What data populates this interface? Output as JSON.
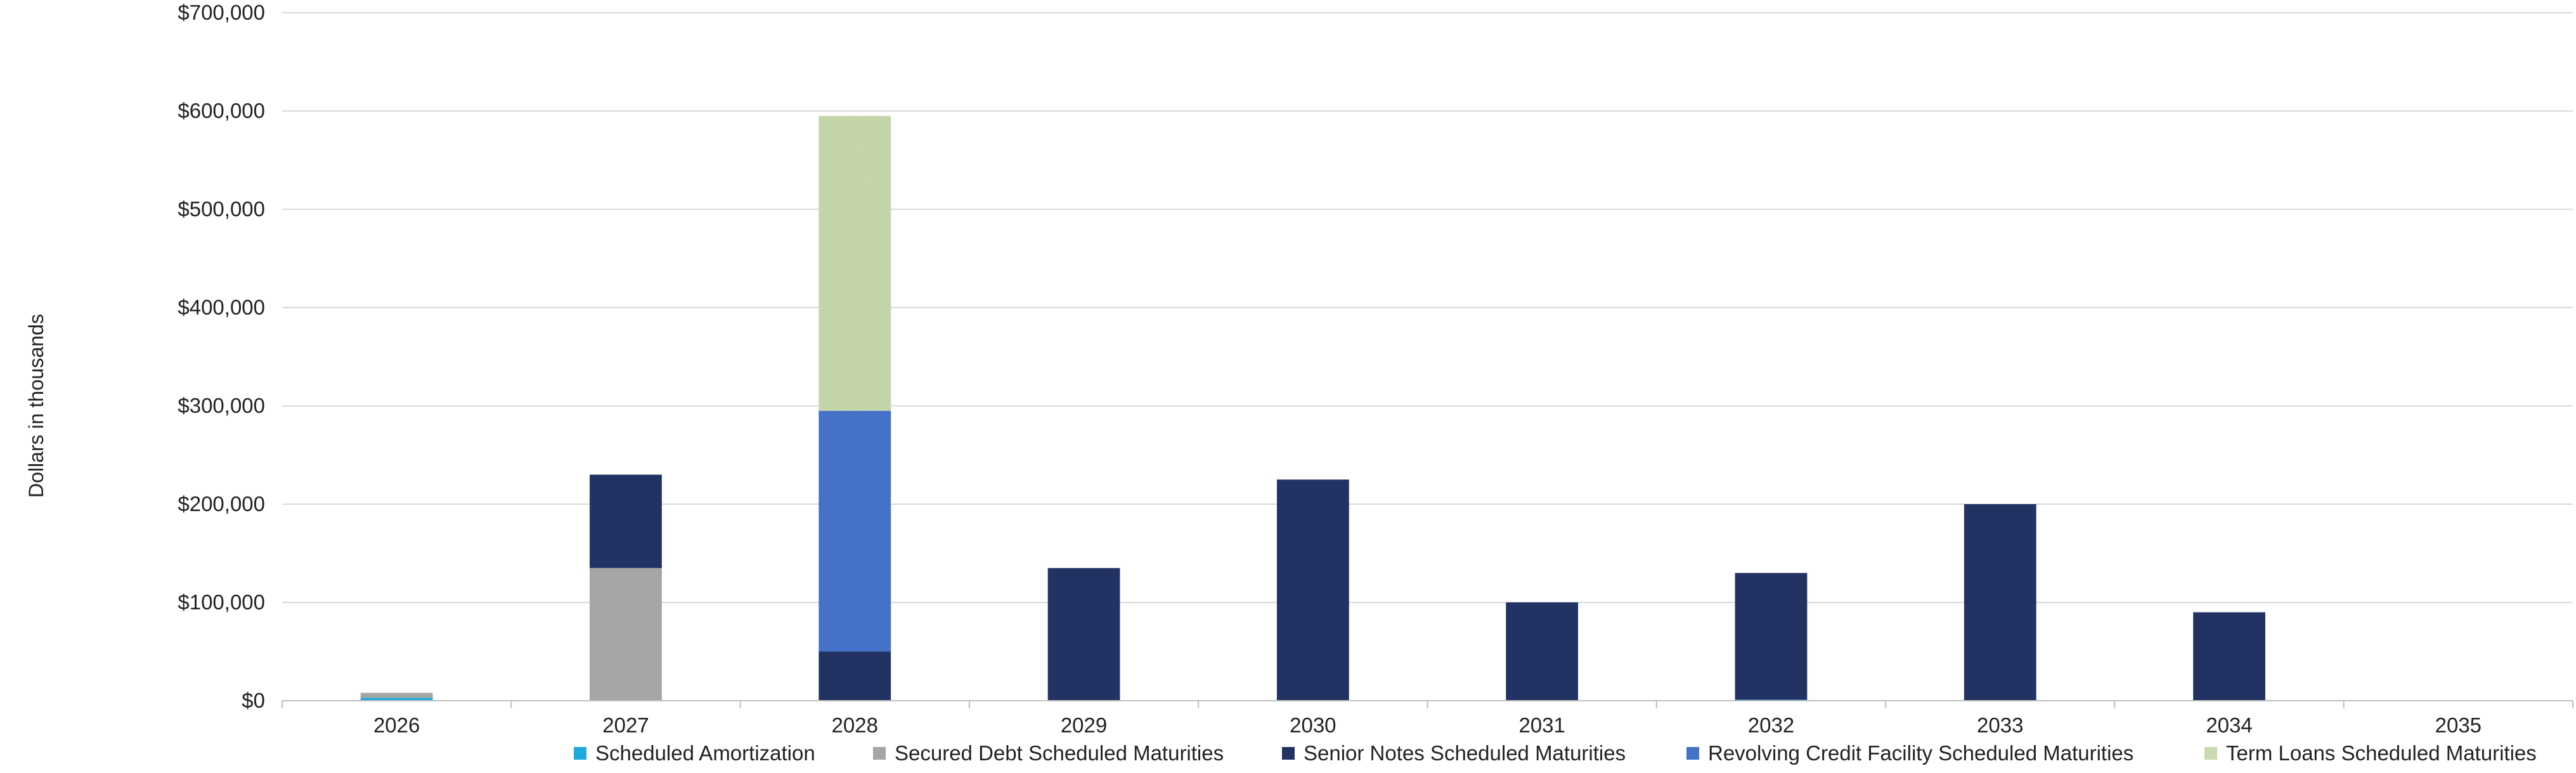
{
  "chart_data": {
    "type": "bar",
    "stacked": true,
    "ylabel": "Dollars in thousands",
    "ylim": [
      0,
      700000
    ],
    "yticks": [
      {
        "value": 0,
        "label": "$0"
      },
      {
        "value": 100000,
        "label": "$100,000"
      },
      {
        "value": 200000,
        "label": "$200,000"
      },
      {
        "value": 300000,
        "label": "$300,000"
      },
      {
        "value": 400000,
        "label": "$400,000"
      },
      {
        "value": 500000,
        "label": "$500,000"
      },
      {
        "value": 600000,
        "label": "$600,000"
      },
      {
        "value": 700000,
        "label": "$700,000"
      }
    ],
    "categories": [
      "2026",
      "2027",
      "2028",
      "2029",
      "2030",
      "2031",
      "2032",
      "2033",
      "2034",
      "2035"
    ],
    "grid": true,
    "legend_position": "bottom",
    "series": [
      {
        "name": "Scheduled Amortization",
        "color": "#1fa9dc",
        "values": [
          3000,
          0,
          0,
          0,
          0,
          0,
          1000,
          0,
          0,
          0
        ]
      },
      {
        "name": "Secured Debt Scheduled Maturities",
        "color": "#a5a5a5",
        "values": [
          5000,
          135000,
          0,
          0,
          0,
          0,
          0,
          0,
          0,
          0
        ]
      },
      {
        "name": "Senior Notes Scheduled Maturities",
        "color": "#223363",
        "values": [
          0,
          95000,
          50000,
          135000,
          225000,
          100000,
          129000,
          200000,
          90000,
          0
        ]
      },
      {
        "name": "Revolving Credit Facility Scheduled Maturities",
        "color": "#4472c8",
        "values": [
          0,
          0,
          245000,
          0,
          0,
          0,
          0,
          0,
          0,
          0
        ]
      },
      {
        "name": "Term Loans Scheduled Maturities",
        "color": "#c9d9b0",
        "values": [
          0,
          0,
          300000,
          0,
          0,
          0,
          0,
          0,
          0,
          0
        ]
      }
    ]
  }
}
